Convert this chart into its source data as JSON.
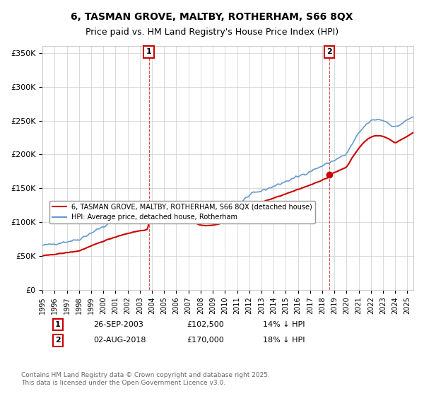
{
  "title_line1": "6, TASMAN GROVE, MALTBY, ROTHERHAM, S66 8QX",
  "title_line2": "Price paid vs. HM Land Registry's House Price Index (HPI)",
  "legend_label_red": "6, TASMAN GROVE, MALTBY, ROTHERHAM, S66 8QX (detached house)",
  "legend_label_blue": "HPI: Average price, detached house, Rotherham",
  "annotation1_label": "1",
  "annotation1_date": "26-SEP-2003",
  "annotation1_price": "£102,500",
  "annotation1_hpi": "14% ↓ HPI",
  "annotation2_label": "2",
  "annotation2_date": "02-AUG-2018",
  "annotation2_price": "£170,000",
  "annotation2_hpi": "18% ↓ HPI",
  "footer": "Contains HM Land Registry data © Crown copyright and database right 2025.\nThis data is licensed under the Open Government Licence v3.0.",
  "sale1_year": 2003.74,
  "sale1_price": 102500,
  "sale2_year": 2018.58,
  "sale2_price": 170000,
  "red_color": "#cc0000",
  "blue_color": "#6699cc",
  "vline_color": "#cc0000",
  "ylim_min": 0,
  "ylim_max": 360000,
  "xlim_min": 1995,
  "xlim_max": 2025.5,
  "yticks": [
    0,
    50000,
    100000,
    150000,
    200000,
    250000,
    300000,
    350000
  ],
  "ytick_labels": [
    "£0",
    "£50K",
    "£100K",
    "£150K",
    "£200K",
    "£250K",
    "£300K",
    "£350K"
  ],
  "xticks": [
    1995,
    1996,
    1997,
    1998,
    1999,
    2000,
    2001,
    2002,
    2003,
    2004,
    2005,
    2006,
    2007,
    2008,
    2009,
    2010,
    2011,
    2012,
    2013,
    2014,
    2015,
    2016,
    2017,
    2018,
    2019,
    2020,
    2021,
    2022,
    2023,
    2024,
    2025
  ]
}
